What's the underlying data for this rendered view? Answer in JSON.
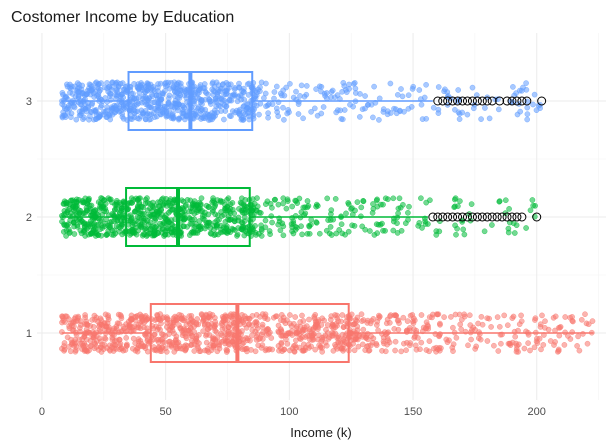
{
  "chart_data": {
    "type": "boxplot",
    "title": "Costomer Income by Education",
    "xlabel": "Income (k)",
    "ylabel": "",
    "xlim": [
      -2,
      228
    ],
    "x_ticks": [
      0,
      50,
      100,
      150,
      200
    ],
    "y_categories": [
      "1",
      "2",
      "3"
    ],
    "orientation": "horizontal",
    "jitter_points": true,
    "outlier_style": "hollow black circle",
    "legend": "none",
    "grid": true,
    "series": [
      {
        "category": "1",
        "color": "#F8766D",
        "min": 8,
        "q1": 44,
        "median": 79,
        "q3": 124,
        "max": 223,
        "outliers": []
      },
      {
        "category": "2",
        "color": "#00BA38",
        "min": 8,
        "q1": 34,
        "median": 55,
        "q3": 84,
        "max": 156,
        "outliers": [
          158,
          160,
          162,
          164,
          166,
          168,
          170,
          172,
          174,
          176,
          178,
          180,
          182,
          184,
          186,
          188,
          190,
          192,
          194,
          200
        ]
      },
      {
        "category": "3",
        "color": "#619CFF",
        "min": 8,
        "q1": 35,
        "median": 60,
        "q3": 85,
        "max": 158,
        "outliers": [
          160,
          162,
          164,
          166,
          168,
          170,
          172,
          174,
          176,
          178,
          180,
          182,
          185,
          188,
          190,
          192,
          194,
          196,
          202
        ]
      }
    ]
  }
}
